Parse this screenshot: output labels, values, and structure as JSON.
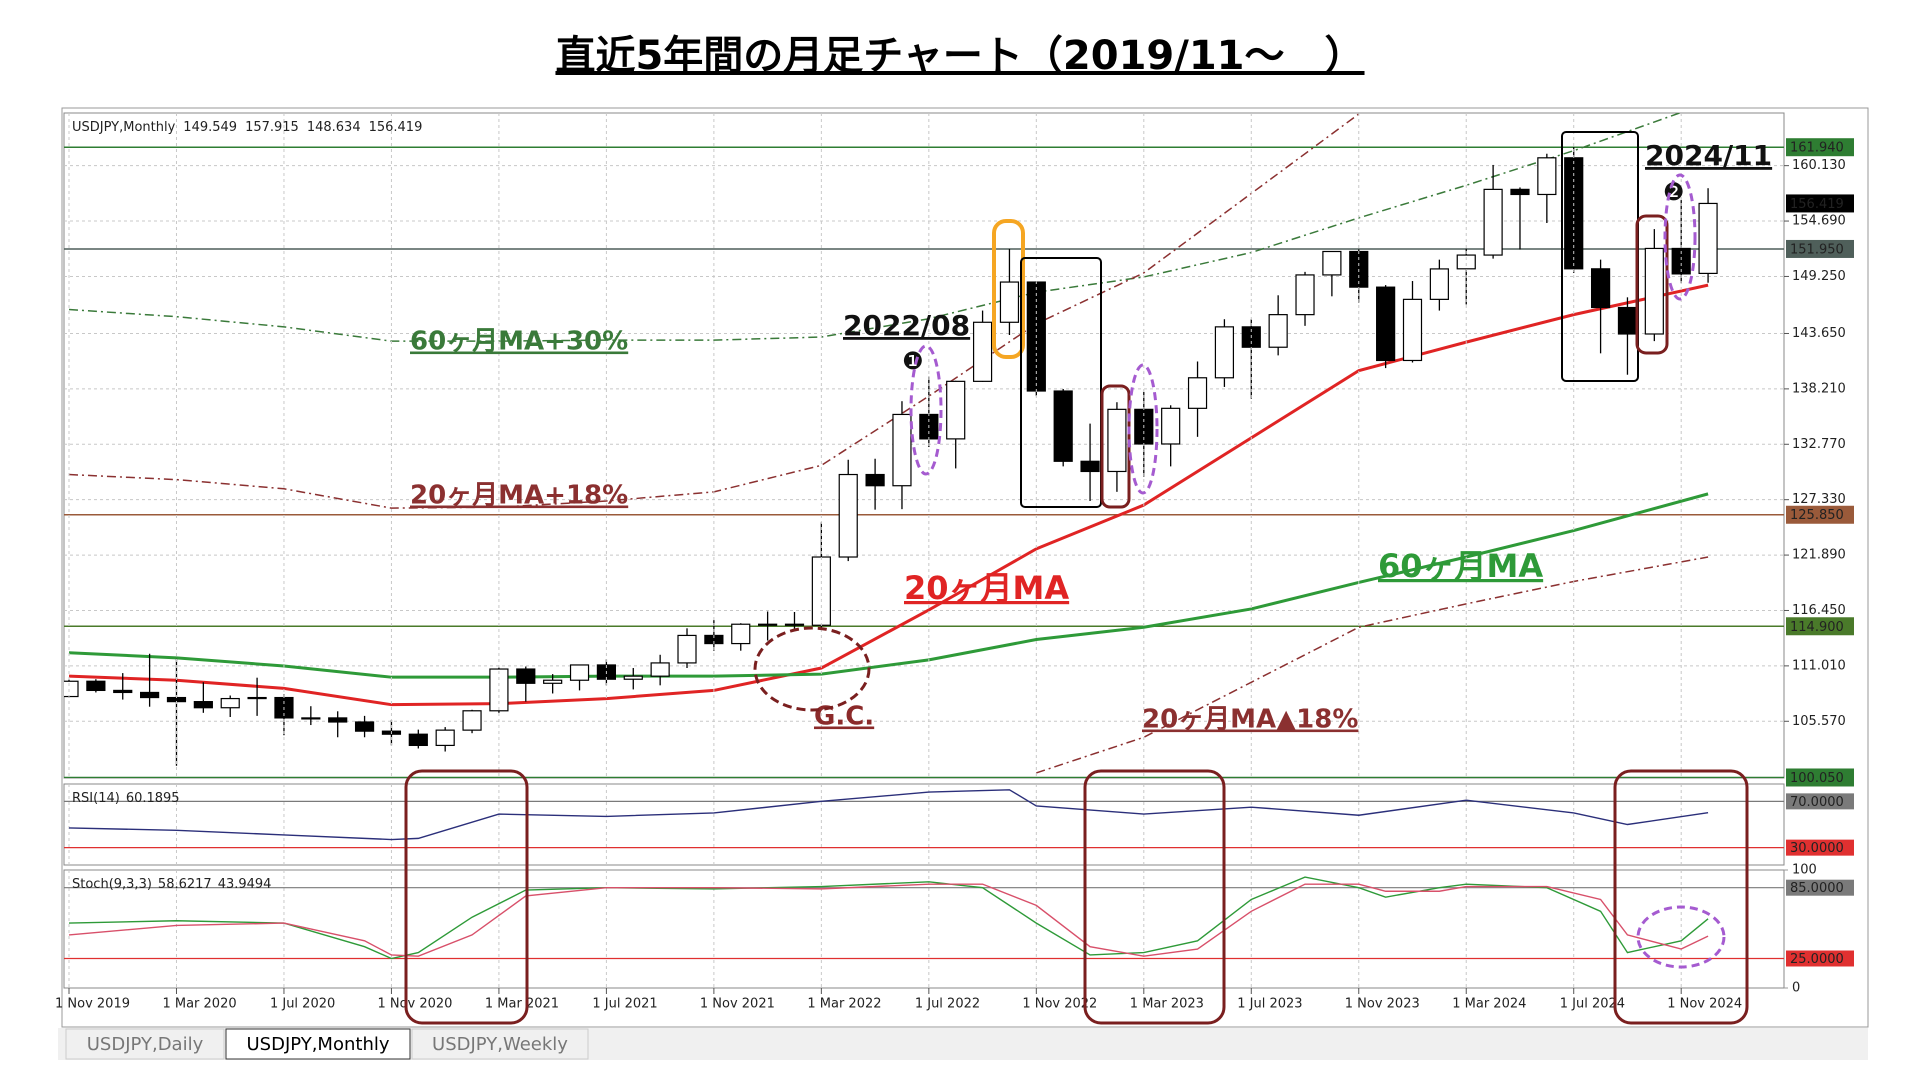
{
  "title": "直近5年間の月足チャート（2019/11～　）",
  "tabs": [
    "USDJPY,Daily",
    "USDJPY,Monthly",
    "USDJPY,Weekly"
  ],
  "chart_data": [
    {
      "type": "candlestick",
      "symbol": "USDJPY,Monthly",
      "open": [
        108.0,
        109.5,
        108.6,
        108.4,
        107.9,
        107.5,
        106.9,
        107.8,
        107.9,
        105.9,
        105.9,
        105.5,
        104.6,
        104.3,
        103.2,
        104.7,
        106.6,
        110.7,
        109.3,
        109.6,
        111.1,
        109.7,
        110.0,
        111.3,
        114.0,
        113.2,
        115.1,
        115.1,
        115.0,
        121.7,
        129.8,
        128.7,
        135.7,
        133.3,
        138.95,
        144.75,
        148.7,
        138.0,
        131.1,
        130.1,
        136.2,
        132.8,
        136.3,
        139.3,
        144.3,
        142.3,
        145.5,
        149.4,
        151.7,
        148.2,
        141.0,
        147.0,
        150.0,
        151.35,
        157.8,
        157.3,
        160.9,
        150.0,
        146.2,
        143.6,
        152.0,
        149.549
      ],
      "high": [
        109.7,
        109.7,
        110.3,
        112.2,
        111.7,
        109.4,
        108.1,
        109.85,
        108.2,
        107.05,
        106.55,
        106.1,
        105.7,
        104.75,
        105.0,
        106.7,
        110.9,
        110.95,
        110.2,
        111.1,
        111.65,
        110.8,
        112.1,
        114.7,
        115.5,
        115.2,
        116.35,
        116.3,
        125.1,
        131.25,
        131.35,
        137.0,
        139.4,
        139.0,
        145.9,
        151.95,
        148.8,
        138.2,
        134.8,
        136.9,
        137.9,
        136.6,
        140.9,
        145.05,
        145.05,
        147.4,
        149.7,
        151.7,
        151.9,
        148.4,
        148.8,
        150.9,
        151.97,
        160.2,
        157.99,
        161.3,
        161.95,
        150.9,
        147.2,
        153.9,
        156.75,
        157.915
      ],
      "low": [
        107.9,
        108.4,
        107.7,
        107.0,
        101.2,
        106.4,
        105.99,
        106.1,
        104.2,
        105.2,
        104.0,
        104.0,
        103.2,
        102.9,
        102.6,
        104.4,
        106.4,
        107.5,
        108.3,
        108.6,
        109.1,
        108.7,
        109.1,
        110.8,
        112.5,
        112.5,
        113.5,
        114.4,
        114.65,
        121.3,
        126.35,
        126.4,
        132.5,
        130.4,
        138.9,
        143.5,
        137.5,
        130.6,
        127.2,
        128.1,
        129.6,
        130.6,
        133.5,
        138.4,
        137.25,
        141.5,
        144.4,
        147.3,
        146.7,
        140.25,
        140.8,
        145.9,
        146.5,
        151.0,
        151.9,
        154.5,
        149.6,
        141.7,
        139.6,
        142.9,
        148.6,
        148.634
      ],
      "close": [
        109.5,
        108.6,
        108.4,
        107.9,
        107.5,
        106.9,
        107.8,
        107.9,
        105.9,
        105.9,
        105.5,
        104.6,
        104.3,
        103.2,
        104.7,
        106.6,
        110.7,
        109.3,
        109.6,
        111.1,
        109.7,
        110.0,
        111.3,
        114.0,
        113.2,
        115.1,
        115.1,
        115.0,
        121.7,
        129.8,
        128.7,
        135.7,
        133.3,
        138.95,
        144.75,
        148.7,
        138.0,
        131.1,
        130.1,
        136.2,
        132.8,
        136.3,
        139.3,
        144.3,
        142.3,
        145.5,
        149.4,
        151.7,
        148.2,
        141.0,
        147.0,
        149.99,
        151.35,
        157.8,
        157.3,
        160.9,
        150.0,
        146.2,
        143.6,
        152.0,
        149.5,
        156.419
      ],
      "ylim": [
        100,
        165.3
      ],
      "yticks": [
        {
          "value": 105.57,
          "label": "105.570"
        },
        {
          "value": 111.01,
          "label": "111.010"
        },
        {
          "value": 116.45,
          "label": "116.450"
        },
        {
          "value": 121.89,
          "label": "121.890"
        },
        {
          "value": 127.33,
          "label": "127.330"
        },
        {
          "value": 132.77,
          "label": "132.770"
        },
        {
          "value": 138.21,
          "label": "138.210"
        },
        {
          "value": 143.65,
          "label": "143.650"
        },
        {
          "value": 149.25,
          "label": "149.250"
        },
        {
          "value": 154.69,
          "label": "154.690"
        },
        {
          "value": 160.13,
          "label": "160.130"
        }
      ],
      "xticks": [
        {
          "value": 0,
          "label": "1 Nov 2019"
        },
        {
          "value": 4,
          "label": "1 Mar 2020"
        },
        {
          "value": 8,
          "label": "1 Jul 2020"
        },
        {
          "value": 12,
          "label": "1 Nov 2020"
        },
        {
          "value": 16,
          "label": "1 Mar 2021"
        },
        {
          "value": 20,
          "label": "1 Jul 2021"
        },
        {
          "value": 24,
          "label": "1 Nov 2021"
        },
        {
          "value": 28,
          "label": "1 Mar 2022"
        },
        {
          "value": 32,
          "label": "1 Jul 2022"
        },
        {
          "value": 36,
          "label": "1 Nov 2022"
        },
        {
          "value": 40,
          "label": "1 Mar 2023"
        },
        {
          "value": 44,
          "label": "1 Jul 2023"
        },
        {
          "value": 48,
          "label": "1 Nov 2023"
        },
        {
          "value": 52,
          "label": "1 Mar 2024"
        },
        {
          "value": 56,
          "label": "1 Jul 2024"
        },
        {
          "value": 60,
          "label": "1 Nov 2024"
        }
      ],
      "grid": true,
      "hlines": [
        {
          "value": 161.94,
          "label": "161.940",
          "color": "#2e7d32"
        },
        {
          "value": 151.95,
          "label": "151.950",
          "color": "#4f5f5a"
        },
        {
          "value": 125.85,
          "label": "125.850",
          "color": "#9a5a3a"
        },
        {
          "value": 114.9,
          "label": "114.900",
          "color": "#4a7a2a"
        },
        {
          "value": 100.05,
          "label": "100.050",
          "color": "#2e7d32"
        }
      ],
      "ma_lines": [
        {
          "name": "20ヶ月MA",
          "color": "#e02424",
          "x": [
            0,
            4,
            8,
            12,
            16,
            20,
            24,
            28,
            32,
            36,
            40,
            44,
            48,
            52,
            56,
            61
          ],
          "values": [
            110.0,
            109.6,
            108.8,
            107.2,
            107.3,
            107.8,
            108.6,
            110.8,
            116.5,
            122.5,
            126.8,
            133.4,
            140.0,
            142.8,
            145.5,
            148.4
          ]
        },
        {
          "name": "60ヶ月MA",
          "color": "#2e9a38",
          "x": [
            0,
            4,
            8,
            12,
            16,
            20,
            24,
            28,
            32,
            36,
            40,
            44,
            48,
            52,
            56,
            61
          ],
          "values": [
            112.3,
            111.8,
            111.0,
            109.9,
            109.9,
            110.0,
            110.0,
            110.2,
            111.6,
            113.6,
            114.8,
            116.6,
            119.2,
            121.7,
            124.3,
            127.9
          ]
        },
        {
          "name": "60ヶ月MA+30%",
          "color": "#3a7a3a",
          "x": [
            0,
            4,
            8,
            12,
            16,
            20,
            24,
            28,
            32,
            36,
            40,
            44,
            48,
            52,
            56,
            61
          ],
          "values": [
            146.0,
            145.3,
            144.3,
            142.9,
            142.9,
            143.0,
            143.0,
            143.3,
            145.1,
            147.7,
            149.2,
            151.6,
            155.0,
            158.2,
            161.6,
            166.3
          ]
        },
        {
          "name": "20ヶ月MA+18%",
          "color": "#8b3030",
          "x": [
            0,
            4,
            8,
            12,
            16,
            20,
            24,
            28,
            32,
            36,
            40,
            44,
            48
          ],
          "values": [
            129.8,
            129.3,
            128.4,
            126.5,
            126.6,
            127.2,
            128.1,
            130.7,
            137.5,
            144.6,
            149.6,
            157.4,
            165.2
          ]
        },
        {
          "name": "20ヶ月MA▲18%",
          "color": "#8b3030",
          "x": [
            36,
            40,
            44,
            48,
            52,
            56,
            61
          ],
          "values": [
            100.5,
            104.0,
            109.4,
            114.8,
            117.1,
            119.3,
            121.7
          ]
        }
      ],
      "annotations": [
        "G.C.",
        "2022/08",
        "❶",
        "2024/11",
        "❷"
      ]
    },
    {
      "type": "line",
      "name": "RSI(14)",
      "ylim": [
        15,
        85
      ],
      "yticks": [
        {
          "value": 70,
          "label": "70.0000"
        },
        {
          "value": 30,
          "label": "30.0000"
        }
      ],
      "ytick_colors": [
        "#7a7a7a",
        "#e03030"
      ],
      "series": [
        {
          "color": "#2b2f7a",
          "x": [
            0,
            4,
            8,
            12,
            13,
            16,
            20,
            24,
            28,
            32,
            35,
            36,
            40,
            44,
            48,
            52,
            56,
            58,
            61
          ],
          "values": [
            47,
            45,
            41,
            37,
            38,
            59,
            57,
            60,
            70,
            78,
            80,
            66,
            59,
            65,
            58,
            71,
            60,
            50,
            60.1895
          ]
        }
      ]
    },
    {
      "type": "line",
      "name": "Stoch(9,3,3)",
      "ylim": [
        0,
        100
      ],
      "yticks": [
        0,
        {
          "value": 25,
          "label": "25.0000"
        },
        {
          "value": 85,
          "label": "85.0000"
        },
        100
      ],
      "ytick_colors": [
        null,
        "#e03030",
        "#7a7a7a",
        null
      ],
      "series": [
        {
          "color": "#2e9a38",
          "x": [
            0,
            4,
            8,
            11,
            12,
            13,
            15,
            17,
            20,
            24,
            28,
            32,
            34,
            36,
            38,
            40,
            42,
            44,
            46,
            48,
            49,
            51,
            52,
            55,
            57,
            58,
            60,
            61
          ],
          "values": [
            55,
            57,
            55,
            35,
            25,
            30,
            60,
            83,
            85,
            84,
            86,
            90,
            85,
            55,
            28,
            30,
            40,
            75,
            94,
            85,
            77,
            85,
            88,
            85,
            65,
            30,
            40,
            58.6217
          ]
        },
        {
          "color": "#d8506a",
          "x": [
            0,
            4,
            8,
            11,
            12,
            13,
            15,
            17,
            20,
            24,
            28,
            32,
            34,
            36,
            38,
            40,
            42,
            44,
            46,
            48,
            49,
            51,
            52,
            55,
            57,
            58,
            60,
            61
          ],
          "values": [
            45,
            53,
            55,
            40,
            28,
            27,
            45,
            78,
            85,
            85,
            84,
            88,
            88,
            70,
            35,
            27,
            33,
            65,
            88,
            88,
            82,
            82,
            86,
            86,
            75,
            45,
            33,
            43.9494
          ]
        }
      ]
    }
  ]
}
